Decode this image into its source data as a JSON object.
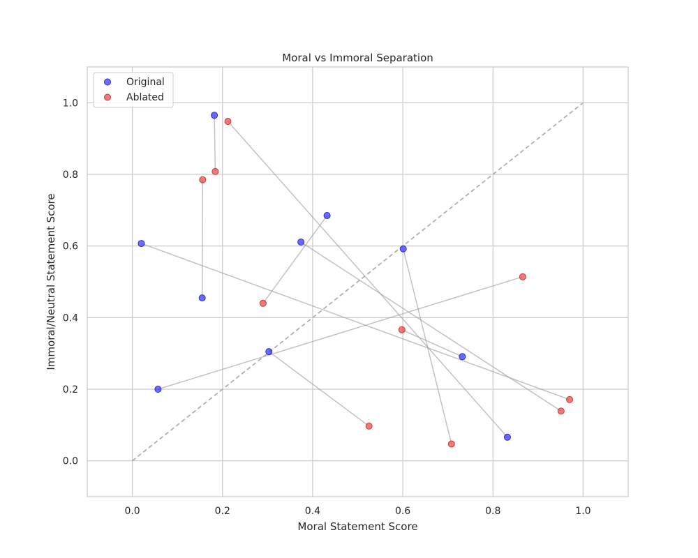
{
  "chart_data": {
    "type": "scatter",
    "title": "Moral vs Immoral Separation",
    "xlabel": "Moral Statement Score",
    "ylabel": "Immoral/Neutral Statement Score",
    "xlim": [
      -0.1,
      1.1
    ],
    "ylim": [
      -0.1,
      1.1
    ],
    "xticks": [
      "0.0",
      "0.2",
      "0.4",
      "0.6",
      "0.8",
      "1.0"
    ],
    "yticks": [
      "0.0",
      "0.2",
      "0.4",
      "0.6",
      "0.8",
      "1.0"
    ],
    "grid": true,
    "legend_position": "top-left",
    "diagonal_reference": true,
    "series": [
      {
        "name": "Original",
        "color": "#3b3bff",
        "points": [
          [
            0.02,
            0.607
          ],
          [
            0.182,
            0.965
          ],
          [
            0.155,
            0.455
          ],
          [
            0.432,
            0.685
          ],
          [
            0.374,
            0.611
          ],
          [
            0.601,
            0.592
          ],
          [
            0.057,
            0.2
          ],
          [
            0.303,
            0.305
          ],
          [
            0.732,
            0.291
          ],
          [
            0.832,
            0.066
          ]
        ]
      },
      {
        "name": "Ablated",
        "color": "#ea4f4f",
        "points": [
          [
            0.97,
            0.171
          ],
          [
            0.184,
            0.808
          ],
          [
            0.156,
            0.785
          ],
          [
            0.29,
            0.44
          ],
          [
            0.951,
            0.139
          ],
          [
            0.708,
            0.047
          ],
          [
            0.866,
            0.514
          ],
          [
            0.525,
            0.097
          ],
          [
            0.598,
            0.366
          ],
          [
            0.212,
            0.948
          ]
        ]
      }
    ]
  }
}
